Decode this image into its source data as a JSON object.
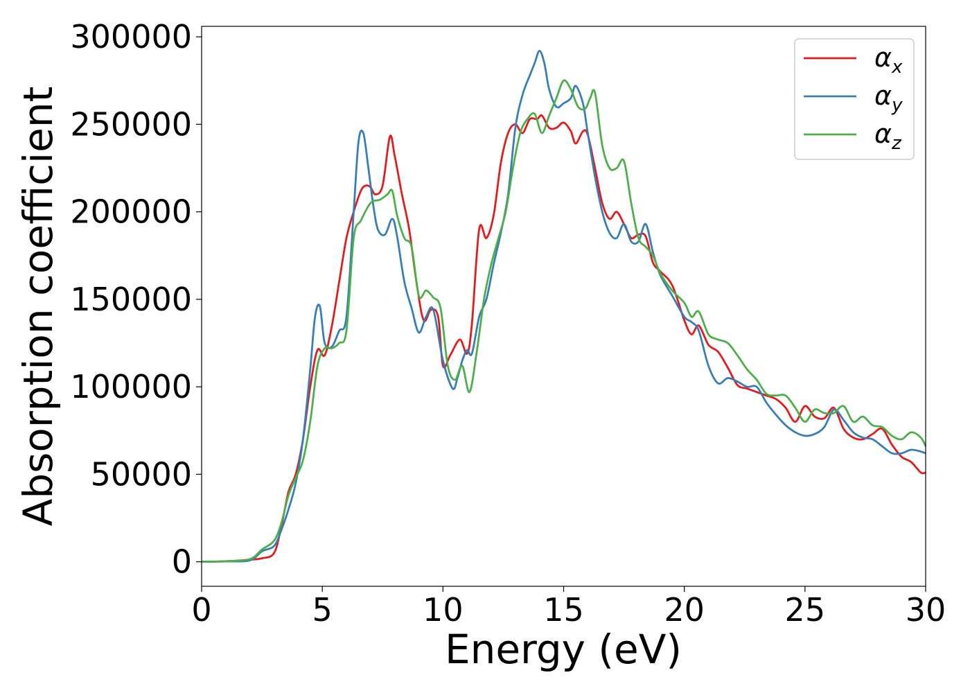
{
  "chart_data": {
    "type": "line",
    "xlabel": "Energy (eV)",
    "ylabel": "Absorption coefficient",
    "xlim": [
      0,
      30
    ],
    "ylim": [
      -14000,
      306000
    ],
    "xticks": [
      "0",
      "5",
      "10",
      "15",
      "20",
      "25",
      "30"
    ],
    "yticks": [
      "0",
      "50000",
      "100000",
      "150000",
      "200000",
      "250000",
      "300000"
    ],
    "grid": false,
    "legend_position": "top-right",
    "series": [
      {
        "name": "α",
        "subscript": "x",
        "color": "#e41a1c",
        "x": [
          0,
          1,
          2,
          2.5,
          3,
          3.3,
          3.6,
          3.9,
          4.2,
          4.5,
          4.8,
          5.1,
          5.4,
          5.7,
          6,
          6.3,
          6.6,
          6.8,
          7.0,
          7.2,
          7.5,
          7.8,
          8.0,
          8.3,
          8.6,
          8.9,
          9.2,
          9.5,
          9.8,
          10.0,
          10.3,
          10.7,
          11.0,
          11.2,
          11.5,
          11.8,
          12.1,
          12.4,
          12.7,
          13.0,
          13.3,
          13.6,
          13.9,
          14.1,
          14.4,
          14.7,
          15.0,
          15.3,
          15.5,
          15.8,
          16.0,
          16.3,
          16.6,
          16.9,
          17.2,
          17.5,
          17.8,
          18.1,
          18.4,
          18.7,
          19.0,
          19.5,
          20.0,
          20.3,
          20.6,
          21.0,
          21.4,
          21.8,
          22.2,
          22.6,
          23.0,
          23.4,
          23.8,
          24.2,
          24.6,
          25.0,
          25.4,
          25.8,
          26.2,
          26.6,
          27.0,
          27.4,
          27.8,
          28.2,
          28.6,
          29.0,
          29.4,
          29.8,
          30.0
        ],
        "y": [
          0,
          300,
          1200,
          2000,
          5000,
          20000,
          40000,
          50000,
          70000,
          100000,
          121000,
          118000,
          135000,
          160000,
          185000,
          200000,
          212000,
          215000,
          214000,
          210000,
          215000,
          243000,
          232000,
          210000,
          190000,
          160000,
          138000,
          144000,
          140000,
          112000,
          118000,
          127000,
          119000,
          136000,
          190000,
          185000,
          198000,
          228000,
          245000,
          250000,
          245000,
          253000,
          253000,
          255000,
          248000,
          248000,
          251000,
          246000,
          239000,
          246000,
          244000,
          225000,
          205000,
          196000,
          200000,
          193000,
          185000,
          187000,
          186000,
          171000,
          166000,
          158000,
          138000,
          130000,
          135000,
          124000,
          120000,
          111000,
          101000,
          99000,
          97000,
          95000,
          93000,
          88000,
          80000,
          89000,
          83000,
          82000,
          88000,
          76000,
          71000,
          70000,
          73000,
          76000,
          67000,
          60000,
          57000,
          51000,
          51000
        ]
      },
      {
        "name": "α",
        "subscript": "y",
        "color": "#377eb8",
        "x": [
          0,
          1,
          2,
          2.5,
          3,
          3.3,
          3.6,
          3.9,
          4.2,
          4.5,
          4.7,
          4.9,
          5.1,
          5.4,
          5.7,
          6.0,
          6.3,
          6.5,
          6.7,
          6.9,
          7.1,
          7.3,
          7.6,
          7.9,
          8.1,
          8.4,
          8.7,
          9.0,
          9.3,
          9.6,
          10.0,
          10.4,
          10.6,
          10.8,
          11.0,
          11.2,
          11.5,
          11.8,
          12.1,
          12.4,
          12.7,
          13.0,
          13.3,
          13.6,
          13.8,
          14.0,
          14.2,
          14.4,
          14.7,
          15.0,
          15.3,
          15.5,
          15.8,
          16.0,
          16.3,
          16.6,
          16.9,
          17.2,
          17.5,
          17.8,
          18.1,
          18.4,
          18.7,
          19.0,
          19.5,
          20.0,
          20.3,
          20.6,
          21.0,
          21.4,
          21.8,
          22.2,
          22.6,
          23.0,
          23.4,
          23.8,
          24.2,
          24.6,
          25.0,
          25.4,
          25.8,
          26.2,
          26.6,
          27.0,
          27.4,
          27.8,
          28.2,
          28.6,
          29.0,
          29.4,
          29.8,
          30.0
        ],
        "y": [
          0,
          200,
          800,
          6000,
          9000,
          18000,
          30000,
          45000,
          70000,
          110000,
          140000,
          146000,
          125000,
          123000,
          132000,
          140000,
          200000,
          240000,
          245000,
          226000,
          205000,
          190000,
          187000,
          196000,
          186000,
          160000,
          145000,
          131000,
          140000,
          144000,
          115000,
          99000,
          105000,
          115000,
          121000,
          119000,
          140000,
          150000,
          170000,
          188000,
          210000,
          248000,
          267000,
          278000,
          285000,
          292000,
          285000,
          270000,
          260000,
          262000,
          265000,
          272000,
          262000,
          245000,
          220000,
          200000,
          188000,
          185000,
          193000,
          183000,
          183000,
          193000,
          177000,
          164000,
          152000,
          140000,
          137000,
          132000,
          112000,
          102000,
          105000,
          103000,
          100000,
          100000,
          91000,
          84000,
          78000,
          74000,
          72000,
          73000,
          77000,
          87000,
          81000,
          74000,
          71000,
          70000,
          66000,
          62000,
          62000,
          64000,
          63000,
          62000
        ]
      },
      {
        "name": "α",
        "subscript": "z",
        "color": "#4daf4a",
        "x": [
          0,
          1,
          2,
          2.5,
          3,
          3.3,
          3.6,
          3.9,
          4.2,
          4.5,
          4.8,
          5.1,
          5.4,
          5.7,
          6.0,
          6.3,
          6.6,
          7.0,
          7.4,
          7.7,
          7.9,
          8.1,
          8.4,
          8.7,
          9.0,
          9.3,
          9.6,
          9.9,
          10.2,
          10.5,
          10.8,
          11.1,
          11.4,
          11.7,
          12.0,
          12.3,
          12.6,
          12.9,
          13.2,
          13.5,
          13.8,
          14.1,
          14.4,
          14.7,
          15.0,
          15.3,
          15.6,
          15.9,
          16.1,
          16.3,
          16.6,
          16.9,
          17.2,
          17.5,
          17.8,
          18.1,
          18.4,
          18.7,
          19.0,
          19.5,
          20.0,
          20.3,
          20.6,
          21.0,
          21.4,
          21.8,
          22.2,
          22.6,
          23.0,
          23.4,
          23.8,
          24.2,
          24.6,
          25.0,
          25.4,
          25.8,
          26.2,
          26.6,
          27.0,
          27.4,
          27.8,
          28.2,
          28.6,
          29.0,
          29.4,
          29.8,
          30.0
        ],
        "y": [
          0,
          300,
          1500,
          7000,
          12000,
          22000,
          38000,
          48000,
          58000,
          80000,
          112000,
          122000,
          122000,
          125000,
          132000,
          185000,
          195000,
          205000,
          207000,
          210000,
          212000,
          198000,
          185000,
          180000,
          152000,
          155000,
          151000,
          145000,
          112000,
          104000,
          112000,
          97000,
          120000,
          150000,
          170000,
          185000,
          200000,
          225000,
          245000,
          253000,
          256000,
          245000,
          255000,
          265000,
          275000,
          270000,
          260000,
          259000,
          265000,
          268000,
          238000,
          225000,
          225000,
          229000,
          205000,
          185000,
          180000,
          175000,
          165000,
          155000,
          148000,
          140000,
          143000,
          130000,
          127000,
          125000,
          118000,
          110000,
          104000,
          96000,
          95000,
          95000,
          88000,
          80000,
          87000,
          85000,
          85000,
          89000,
          80000,
          83000,
          78000,
          77000,
          72000,
          70000,
          74000,
          71000,
          66000
        ]
      }
    ]
  }
}
